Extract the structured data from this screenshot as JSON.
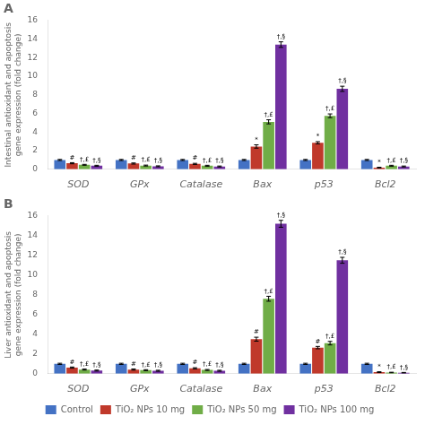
{
  "chart_data": [
    {
      "type": "bar",
      "title": "A",
      "ylabel": "Intestinal antioxidant and apoptosis\ngene expression (fold change)",
      "categories": [
        "SOD",
        "GPx",
        "Catalase",
        "Bax",
        "p53",
        "Bcl2"
      ],
      "series": [
        {
          "name": "Control",
          "color": "#4472c4",
          "values": [
            1.0,
            1.0,
            1.0,
            1.0,
            1.0,
            1.0
          ],
          "errors": [
            0.06,
            0.06,
            0.06,
            0.06,
            0.06,
            0.06
          ]
        },
        {
          "name": "TiO₂ NPs 10 mg",
          "color": "#c0392b",
          "values": [
            0.65,
            0.62,
            0.58,
            2.45,
            2.85,
            0.18
          ],
          "errors": [
            0.06,
            0.06,
            0.06,
            0.18,
            0.12,
            0.04
          ],
          "annotations": [
            "#",
            "#",
            "#",
            "*",
            "*",
            "*"
          ]
        },
        {
          "name": "TiO₂ NPs 50 mg",
          "color": "#70ad47",
          "values": [
            0.48,
            0.4,
            0.38,
            5.1,
            5.75,
            0.38
          ],
          "errors": [
            0.05,
            0.05,
            0.05,
            0.22,
            0.2,
            0.05
          ],
          "annotations": [
            "†,£",
            "†,£",
            "†,£",
            "†,£",
            "†,£",
            "†,£"
          ]
        },
        {
          "name": "TiO₂ NPs 100 mg",
          "color": "#7030a0",
          "values": [
            0.38,
            0.32,
            0.3,
            13.4,
            8.65,
            0.3
          ],
          "errors": [
            0.05,
            0.05,
            0.05,
            0.3,
            0.28,
            0.05
          ],
          "annotations": [
            "†,§",
            "†,§",
            "†,§",
            "†,§",
            "†,§",
            "†,§"
          ]
        }
      ],
      "ylim": [
        0,
        16
      ],
      "yticks": [
        0,
        2,
        4,
        6,
        8,
        10,
        12,
        14,
        16
      ],
      "grid": false
    },
    {
      "type": "bar",
      "title": "B",
      "ylabel": "Liver antioxidant and apoptosis\ngene expression (fold change)",
      "categories": [
        "SOD",
        "GPx",
        "Catalase",
        "Bax",
        "p53",
        "Bcl2"
      ],
      "series": [
        {
          "name": "Control",
          "color": "#4472c4",
          "values": [
            1.0,
            1.0,
            1.0,
            1.0,
            1.0,
            1.0
          ],
          "errors": [
            0.06,
            0.06,
            0.06,
            0.06,
            0.06,
            0.06
          ]
        },
        {
          "name": "TiO₂ NPs 10 mg",
          "color": "#c0392b",
          "values": [
            0.62,
            0.42,
            0.55,
            3.5,
            2.65,
            0.16
          ],
          "errors": [
            0.06,
            0.06,
            0.06,
            0.2,
            0.12,
            0.04
          ],
          "annotations": [
            "#",
            "#",
            "#",
            "#",
            "#",
            "*"
          ]
        },
        {
          "name": "TiO₂ NPs 50 mg",
          "color": "#70ad47",
          "values": [
            0.42,
            0.36,
            0.38,
            7.6,
            3.1,
            0.12
          ],
          "errors": [
            0.05,
            0.05,
            0.05,
            0.25,
            0.18,
            0.03
          ],
          "annotations": [
            "†,£",
            "†,£",
            "†,£",
            "†,£",
            "†,£",
            "†,£"
          ]
        },
        {
          "name": "TiO₂ NPs 100 mg",
          "color": "#7030a0",
          "values": [
            0.32,
            0.3,
            0.3,
            15.2,
            11.5,
            0.1
          ],
          "errors": [
            0.05,
            0.05,
            0.05,
            0.35,
            0.3,
            0.03
          ],
          "annotations": [
            "†,§",
            "†,§",
            "†,§",
            "†,§",
            "†,§",
            "†,§"
          ]
        }
      ],
      "ylim": [
        0,
        16
      ],
      "yticks": [
        0,
        2,
        4,
        6,
        8,
        10,
        12,
        14,
        16
      ],
      "grid": false,
      "legend": "bottom"
    }
  ]
}
